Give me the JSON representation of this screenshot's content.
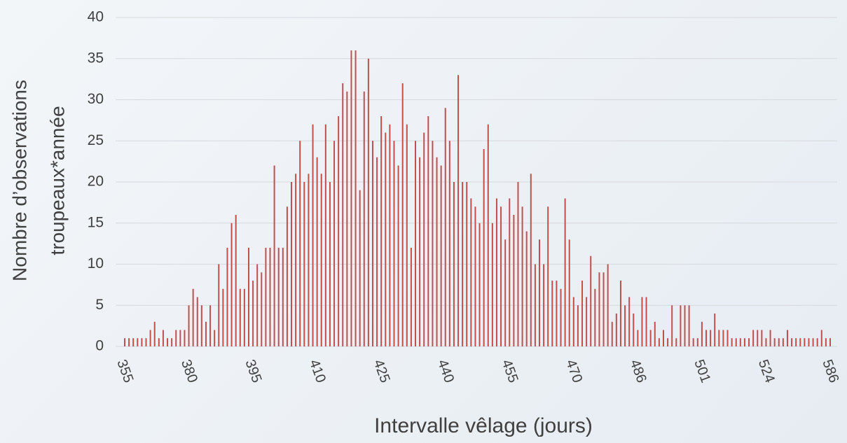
{
  "chart_data": {
    "type": "bar",
    "xlabel": "Intervalle vêlage (jours)",
    "ylabel": [
      "Nombre d’observations",
      "troupeaux*année"
    ],
    "color": "#c0504d",
    "grid": true,
    "ylim": [
      0,
      40
    ],
    "yticks": [
      0,
      5,
      10,
      15,
      20,
      25,
      30,
      35,
      40
    ],
    "categories": [
      "355",
      null,
      null,
      null,
      null,
      null,
      null,
      null,
      null,
      null,
      null,
      null,
      null,
      null,
      null,
      "380",
      null,
      null,
      null,
      null,
      null,
      null,
      null,
      null,
      null,
      null,
      null,
      null,
      null,
      null,
      "395",
      null,
      null,
      null,
      null,
      null,
      null,
      null,
      null,
      null,
      null,
      null,
      null,
      null,
      null,
      "410",
      null,
      null,
      null,
      null,
      null,
      null,
      null,
      null,
      null,
      null,
      null,
      null,
      null,
      null,
      "425",
      null,
      null,
      null,
      null,
      null,
      null,
      null,
      null,
      null,
      null,
      null,
      null,
      null,
      null,
      "440",
      null,
      null,
      null,
      null,
      null,
      null,
      null,
      null,
      null,
      null,
      null,
      null,
      null,
      null,
      "455",
      null,
      null,
      null,
      null,
      null,
      null,
      null,
      null,
      null,
      null,
      null,
      null,
      null,
      null,
      "470",
      null,
      null,
      null,
      null,
      null,
      null,
      null,
      null,
      null,
      null,
      null,
      null,
      null,
      null,
      "486",
      null,
      null,
      null,
      null,
      null,
      null,
      null,
      null,
      null,
      null,
      null,
      null,
      null,
      null,
      "501",
      null,
      null,
      null,
      null,
      null,
      null,
      null,
      null,
      null,
      null,
      null,
      null,
      null,
      null,
      "524",
      null,
      null,
      null,
      null,
      null,
      null,
      null,
      null,
      null,
      null,
      null,
      null,
      null,
      null,
      "586"
    ],
    "values": [
      1,
      1,
      1,
      1,
      1,
      1,
      2,
      3,
      1,
      2,
      1,
      1,
      2,
      2,
      2,
      5,
      7,
      6,
      5,
      3,
      5,
      2,
      10,
      7,
      12,
      15,
      16,
      7,
      7,
      12,
      8,
      10,
      9,
      12,
      12,
      22,
      12,
      12,
      17,
      20,
      21,
      25,
      20,
      21,
      27,
      23,
      21,
      27,
      20,
      25,
      28,
      32,
      31,
      36,
      36,
      19,
      31,
      35,
      25,
      23,
      28,
      26,
      27,
      25,
      22,
      32,
      27,
      12,
      25,
      23,
      26,
      28,
      25,
      23,
      22,
      29,
      25,
      20,
      33,
      20,
      20,
      18,
      17,
      15,
      24,
      27,
      15,
      18,
      17,
      13,
      18,
      16,
      20,
      17,
      14,
      21,
      10,
      13,
      10,
      17,
      8,
      8,
      7,
      18,
      13,
      6,
      5,
      8,
      6,
      11,
      7,
      9,
      9,
      10,
      3,
      4,
      8,
      5,
      6,
      4,
      2,
      6,
      6,
      2,
      3,
      1,
      2,
      1,
      5,
      1,
      5,
      5,
      5,
      1,
      1,
      3,
      2,
      2,
      4,
      2,
      2,
      2,
      1,
      1,
      1,
      1,
      1,
      2,
      2,
      2,
      1,
      2,
      1,
      1,
      1,
      2,
      1,
      1,
      1,
      1,
      1,
      1,
      1,
      2,
      1,
      1
    ]
  }
}
